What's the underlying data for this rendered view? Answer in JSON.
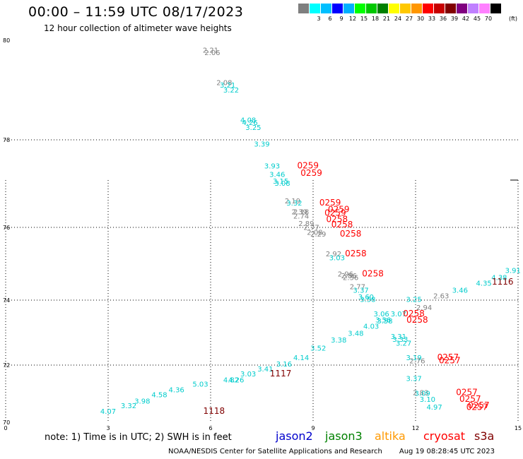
{
  "header": {
    "title": "00:00 – 11:59 UTC 08/17/2023",
    "subtitle": "12 hour collection of altimeter wave heights"
  },
  "colorbar": {
    "colors": [
      "#7f7f7f",
      "#00ffff",
      "#00bfff",
      "#0000ff",
      "#00b0ff",
      "#00ff00",
      "#00c800",
      "#008000",
      "#ffff00",
      "#ffc800",
      "#ff9600",
      "#ff0000",
      "#c80000",
      "#800000",
      "#800080",
      "#c080ff",
      "#ff80ff",
      "#000000"
    ],
    "labels": [
      "3",
      "6",
      "9",
      "12",
      "15",
      "18",
      "21",
      "24",
      "27",
      "30",
      "33",
      "36",
      "39",
      "42",
      "45",
      "70"
    ],
    "unit": "(ft)"
  },
  "map": {
    "y_tick_labels": [
      "80",
      "78",
      "76",
      "74",
      "72",
      "70"
    ],
    "x_tick_labels": [
      "0",
      "3",
      "6",
      "9",
      "12",
      "15"
    ]
  },
  "chart_data": {
    "type": "scatter",
    "x": [
      0,
      15
    ],
    "y": [
      70,
      80
    ],
    "points_swh": [
      {
        "label": "2.21",
        "x": 6.0,
        "y": 79.75,
        "color": "#7f7f7f"
      },
      {
        "label": "2.06",
        "x": 6.05,
        "y": 79.7,
        "color": "#7f7f7f"
      },
      {
        "label": "2.08",
        "x": 6.4,
        "y": 79.1,
        "color": "#7f7f7f"
      },
      {
        "label": "3.21",
        "x": 6.5,
        "y": 79.05,
        "color": "#00cccc"
      },
      {
        "label": "3.22",
        "x": 6.6,
        "y": 78.95,
        "color": "#00cccc"
      },
      {
        "label": "4.08",
        "x": 7.1,
        "y": 78.35,
        "color": "#00cccc"
      },
      {
        "label": "4.26",
        "x": 7.15,
        "y": 78.3,
        "color": "#00cccc"
      },
      {
        "label": "3.25",
        "x": 7.25,
        "y": 78.2,
        "color": "#00cccc"
      },
      {
        "label": "3.39",
        "x": 7.5,
        "y": 77.85,
        "color": "#00cccc"
      },
      {
        "label": "3.93",
        "x": 7.8,
        "y": 77.35,
        "color": "#00cccc"
      },
      {
        "label": "3.46",
        "x": 7.95,
        "y": 77.15,
        "color": "#00cccc"
      },
      {
        "label": "3.15",
        "x": 8.05,
        "y": 77.0,
        "color": "#00cccc"
      },
      {
        "label": "3.08",
        "x": 8.1,
        "y": 76.95,
        "color": "#00cccc"
      },
      {
        "label": "2.19",
        "x": 8.4,
        "y": 76.55,
        "color": "#7f7f7f"
      },
      {
        "label": "3.32",
        "x": 8.45,
        "y": 76.5,
        "color": "#00cccc"
      },
      {
        "label": "2.39",
        "x": 8.6,
        "y": 76.3,
        "color": "#7f7f7f"
      },
      {
        "label": "2.18",
        "x": 8.65,
        "y": 76.3,
        "color": "#7f7f7f"
      },
      {
        "label": "2.74",
        "x": 8.65,
        "y": 76.2,
        "color": "#7f7f7f"
      },
      {
        "label": "2.89",
        "x": 8.8,
        "y": 76.03,
        "color": "#7f7f7f"
      },
      {
        "label": "2.77",
        "x": 8.95,
        "y": 75.93,
        "color": "#7f7f7f"
      },
      {
        "label": "2.08",
        "x": 9.05,
        "y": 75.8,
        "color": "#7f7f7f"
      },
      {
        "label": "2.29",
        "x": 9.15,
        "y": 75.75,
        "color": "#7f7f7f"
      },
      {
        "label": "2.92",
        "x": 9.6,
        "y": 75.2,
        "color": "#7f7f7f"
      },
      {
        "label": "3.03",
        "x": 9.7,
        "y": 75.1,
        "color": "#00cccc"
      },
      {
        "label": "2.96",
        "x": 9.95,
        "y": 74.65,
        "color": "#7f7f7f"
      },
      {
        "label": "2.86",
        "x": 10.05,
        "y": 74.6,
        "color": "#7f7f7f"
      },
      {
        "label": "2.56",
        "x": 10.1,
        "y": 74.55,
        "color": "#7f7f7f"
      },
      {
        "label": "2.77",
        "x": 10.3,
        "y": 74.3,
        "color": "#7f7f7f"
      },
      {
        "label": "3.37",
        "x": 10.4,
        "y": 74.2,
        "color": "#00cccc"
      },
      {
        "label": "3.60",
        "x": 10.55,
        "y": 74.02,
        "color": "#00cccc"
      },
      {
        "label": "3.58",
        "x": 10.6,
        "y": 73.95,
        "color": "#00cccc"
      },
      {
        "label": "2.94",
        "x": 12.25,
        "y": 73.7,
        "color": "#7f7f7f"
      },
      {
        "label": "3.06",
        "x": 11.0,
        "y": 73.5,
        "color": "#00cccc"
      },
      {
        "label": "3.07",
        "x": 11.5,
        "y": 73.5,
        "color": "#00cccc"
      },
      {
        "label": "3.56",
        "x": 11.05,
        "y": 73.32,
        "color": "#00cccc"
      },
      {
        "label": "3.58",
        "x": 11.1,
        "y": 73.28,
        "color": "#00cccc"
      },
      {
        "label": "4.03",
        "x": 10.7,
        "y": 73.12,
        "color": "#00cccc"
      },
      {
        "label": "3.48",
        "x": 10.25,
        "y": 72.9,
        "color": "#00cccc"
      },
      {
        "label": "3.38",
        "x": 9.75,
        "y": 72.7,
        "color": "#00cccc"
      },
      {
        "label": "3.31",
        "x": 11.5,
        "y": 72.8,
        "color": "#00cccc"
      },
      {
        "label": "3.33",
        "x": 11.55,
        "y": 72.72,
        "color": "#00cccc"
      },
      {
        "label": "3.27",
        "x": 11.65,
        "y": 72.6,
        "color": "#00cccc"
      },
      {
        "label": "3.52",
        "x": 9.15,
        "y": 72.45,
        "color": "#00cccc"
      },
      {
        "label": "4.14",
        "x": 8.65,
        "y": 72.15,
        "color": "#00cccc"
      },
      {
        "label": "3.16",
        "x": 8.15,
        "y": 71.95,
        "color": "#00cccc"
      },
      {
        "label": "3.19",
        "x": 11.95,
        "y": 72.15,
        "color": "#00cccc"
      },
      {
        "label": "2.76",
        "x": 12.05,
        "y": 72.05,
        "color": "#7f7f7f"
      },
      {
        "label": "3.41",
        "x": 7.6,
        "y": 71.78,
        "color": "#00cccc"
      },
      {
        "label": "3.03",
        "x": 7.1,
        "y": 71.6,
        "color": "#00cccc"
      },
      {
        "label": "4.82",
        "x": 6.6,
        "y": 71.4,
        "color": "#00cccc"
      },
      {
        "label": "4.26",
        "x": 6.75,
        "y": 71.4,
        "color": "#00cccc"
      },
      {
        "label": "3.37",
        "x": 11.95,
        "y": 71.45,
        "color": "#00cccc"
      },
      {
        "label": "5.03",
        "x": 5.7,
        "y": 71.25,
        "color": "#00cccc"
      },
      {
        "label": "4.36",
        "x": 5.0,
        "y": 71.05,
        "color": "#00cccc"
      },
      {
        "label": "4.58",
        "x": 4.5,
        "y": 70.88,
        "color": "#00cccc"
      },
      {
        "label": "3.98",
        "x": 4.0,
        "y": 70.65,
        "color": "#00cccc"
      },
      {
        "label": "3.32",
        "x": 3.6,
        "y": 70.5,
        "color": "#00cccc"
      },
      {
        "label": "4.07",
        "x": 3.0,
        "y": 70.3,
        "color": "#00cccc"
      },
      {
        "label": "2.83",
        "x": 12.15,
        "y": 70.95,
        "color": "#7f7f7f"
      },
      {
        "label": "3.09",
        "x": 12.2,
        "y": 70.93,
        "color": "#00cccc"
      },
      {
        "label": "3.10",
        "x": 12.35,
        "y": 70.72,
        "color": "#00cccc"
      },
      {
        "label": "4.97",
        "x": 12.55,
        "y": 70.45,
        "color": "#00cccc"
      },
      {
        "label": "3.25",
        "x": 11.95,
        "y": 73.95,
        "color": "#00cccc"
      },
      {
        "label": "2.63",
        "x": 12.75,
        "y": 74.05,
        "color": "#7f7f7f"
      },
      {
        "label": "3.46",
        "x": 13.3,
        "y": 74.2,
        "color": "#00cccc"
      },
      {
        "label": "4.35",
        "x": 14.0,
        "y": 74.4,
        "color": "#00cccc"
      },
      {
        "label": "4.38",
        "x": 14.45,
        "y": 74.55,
        "color": "#00cccc"
      },
      {
        "label": "3.91",
        "x": 14.85,
        "y": 74.75,
        "color": "#00cccc"
      }
    ],
    "time_labels": [
      {
        "label": "0259",
        "x": 8.85,
        "y": 77.35,
        "color": "#ff0000"
      },
      {
        "label": "0259",
        "x": 8.95,
        "y": 77.18,
        "color": "#ff0000"
      },
      {
        "label": "0259",
        "x": 9.5,
        "y": 76.5,
        "color": "#ff0000"
      },
      {
        "label": "0259",
        "x": 9.75,
        "y": 76.35,
        "color": "#ff0000"
      },
      {
        "label": "0259",
        "x": 9.65,
        "y": 76.27,
        "color": "#ff0000"
      },
      {
        "label": "0258",
        "x": 9.7,
        "y": 76.12,
        "color": "#ff0000"
      },
      {
        "label": "0258",
        "x": 9.85,
        "y": 76.0,
        "color": "#ff0000"
      },
      {
        "label": "0258",
        "x": 10.1,
        "y": 75.75,
        "color": "#ff0000"
      },
      {
        "label": "0258",
        "x": 10.25,
        "y": 75.2,
        "color": "#ff0000"
      },
      {
        "label": "0258",
        "x": 10.75,
        "y": 74.65,
        "color": "#ff0000"
      },
      {
        "label": "1116",
        "x": 14.55,
        "y": 74.43,
        "color": "#800000"
      },
      {
        "label": "0258",
        "x": 11.95,
        "y": 73.5,
        "color": "#ff0000"
      },
      {
        "label": "0258",
        "x": 12.05,
        "y": 73.3,
        "color": "#ff0000"
      },
      {
        "label": "0257",
        "x": 12.95,
        "y": 72.15,
        "color": "#ff0000"
      },
      {
        "label": "0257",
        "x": 13.0,
        "y": 72.05,
        "color": "#ff0000"
      },
      {
        "label": "1117",
        "x": 8.05,
        "y": 71.6,
        "color": "#800000"
      },
      {
        "label": "0257",
        "x": 13.5,
        "y": 70.95,
        "color": "#ff0000"
      },
      {
        "label": "0257",
        "x": 13.6,
        "y": 70.72,
        "color": "#ff0000"
      },
      {
        "label": "0257",
        "x": 13.85,
        "y": 70.5,
        "color": "#ff0000"
      },
      {
        "label": "0257",
        "x": 13.8,
        "y": 70.43,
        "color": "#ff0000"
      },
      {
        "label": "1118",
        "x": 6.1,
        "y": 70.3,
        "color": "#800000"
      }
    ]
  },
  "legend": {
    "note": "note: 1) Time is in UTC; 2) SWH is in feet",
    "satellites": [
      {
        "name": "jason2",
        "color": "#0000cc"
      },
      {
        "name": "jason3",
        "color": "#008000"
      },
      {
        "name": "altika",
        "color": "#ff9900"
      },
      {
        "name": "cryosat",
        "color": "#ff0000"
      },
      {
        "name": "s3a",
        "color": "#800000"
      }
    ]
  },
  "footer": {
    "source": "NOAA/NESDIS Center for Satellite Applications and Research",
    "timestamp": "Aug 19 08:28:45 UTC 2023"
  }
}
